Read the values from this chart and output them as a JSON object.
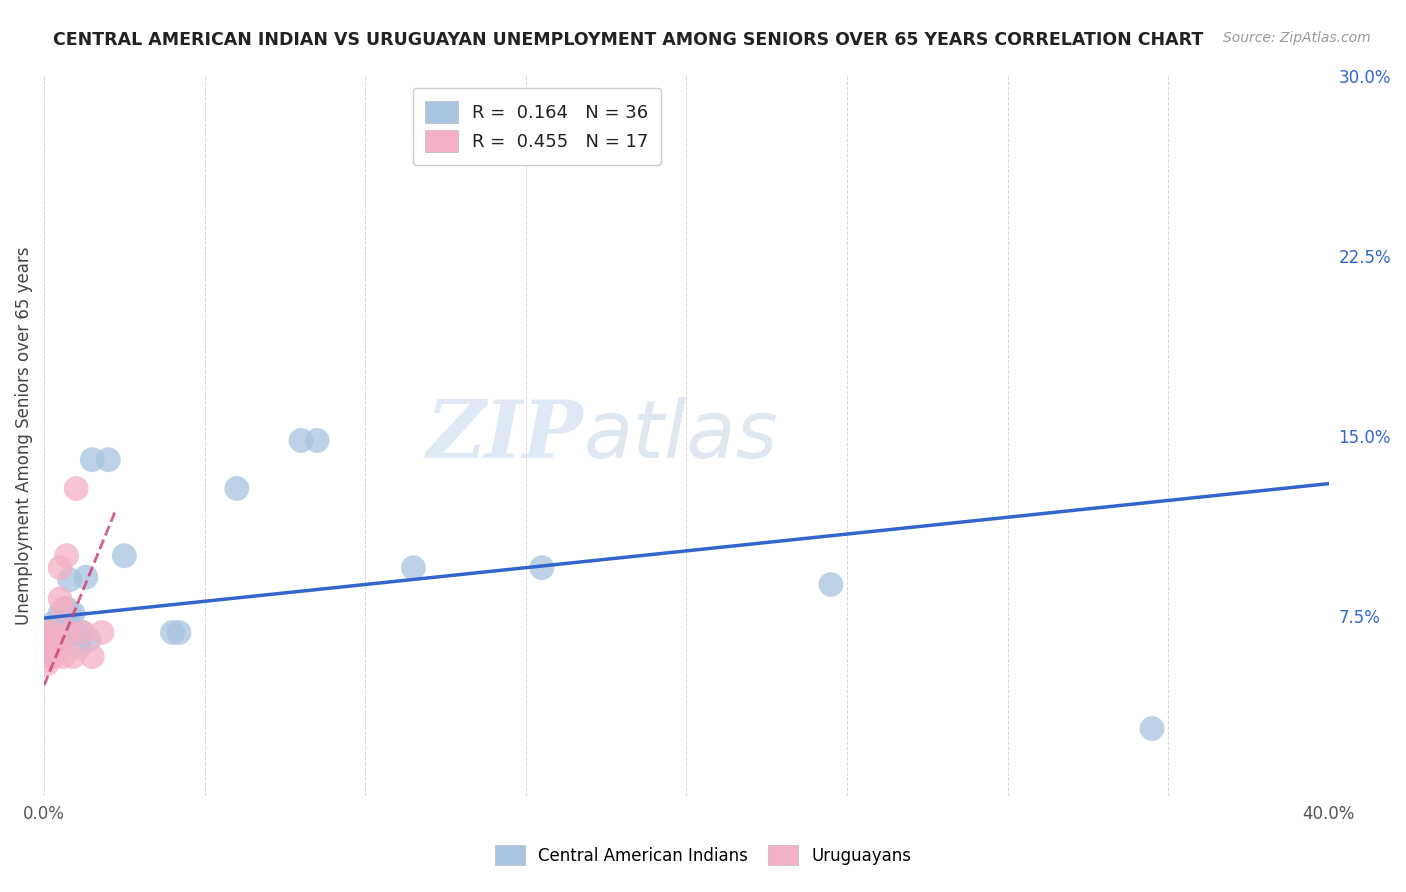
{
  "title": "CENTRAL AMERICAN INDIAN VS URUGUAYAN UNEMPLOYMENT AMONG SENIORS OVER 65 YEARS CORRELATION CHART",
  "source": "Source: ZipAtlas.com",
  "ylabel": "Unemployment Among Seniors over 65 years",
  "xlim": [
    0.0,
    0.4
  ],
  "ylim": [
    0.0,
    0.3
  ],
  "xticks": [
    0.0,
    0.05,
    0.1,
    0.15,
    0.2,
    0.25,
    0.3,
    0.35,
    0.4
  ],
  "xticklabels": [
    "0.0%",
    "",
    "",
    "",
    "",
    "",
    "",
    "",
    "40.0%"
  ],
  "yticks_right": [
    0.075,
    0.15,
    0.225,
    0.3
  ],
  "yticklabels_right": [
    "7.5%",
    "15.0%",
    "22.5%",
    "30.0%"
  ],
  "R_blue": 0.164,
  "N_blue": 36,
  "R_pink": 0.455,
  "N_pink": 17,
  "blue_color": "#a8c4e0",
  "pink_color": "#f4b0c4",
  "trend_blue": "#3366cc",
  "trend_pink": "#cc4477",
  "watermark_zip": "ZIP",
  "watermark_atlas": "atlas",
  "legend_label_blue": "Central American Indians",
  "legend_label_pink": "Uruguayans",
  "blue_x": [
    0.001,
    0.001,
    0.001,
    0.002,
    0.003,
    0.004,
    0.004,
    0.005,
    0.005,
    0.005,
    0.006,
    0.006,
    0.007,
    0.007,
    0.008,
    0.008,
    0.008,
    0.009,
    0.009,
    0.01,
    0.011,
    0.012,
    0.013,
    0.014,
    0.015,
    0.02,
    0.025,
    0.04,
    0.042,
    0.06,
    0.08,
    0.085,
    0.115,
    0.155,
    0.245,
    0.345
  ],
  "blue_y": [
    0.06,
    0.065,
    0.068,
    0.058,
    0.072,
    0.062,
    0.068,
    0.072,
    0.076,
    0.07,
    0.068,
    0.072,
    0.074,
    0.078,
    0.07,
    0.076,
    0.09,
    0.068,
    0.076,
    0.068,
    0.062,
    0.068,
    0.091,
    0.065,
    0.14,
    0.14,
    0.1,
    0.068,
    0.068,
    0.128,
    0.148,
    0.148,
    0.095,
    0.095,
    0.088,
    0.028
  ],
  "pink_x": [
    0.001,
    0.001,
    0.002,
    0.003,
    0.003,
    0.004,
    0.005,
    0.005,
    0.006,
    0.006,
    0.007,
    0.008,
    0.009,
    0.01,
    0.012,
    0.015,
    0.018
  ],
  "pink_y": [
    0.055,
    0.068,
    0.058,
    0.058,
    0.068,
    0.065,
    0.082,
    0.095,
    0.058,
    0.078,
    0.1,
    0.068,
    0.058,
    0.128,
    0.068,
    0.058,
    0.068
  ],
  "blue_trend_x": [
    0.0,
    0.4
  ],
  "blue_trend_y": [
    0.074,
    0.13
  ],
  "pink_trend_x": [
    0.0,
    0.022
  ],
  "pink_trend_y": [
    0.046,
    0.118
  ]
}
